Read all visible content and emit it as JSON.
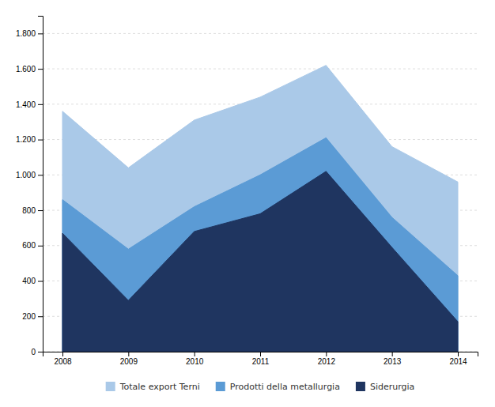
{
  "chart_data": {
    "type": "area",
    "x": [
      2008,
      2009,
      2010,
      2011,
      2012,
      2013,
      2014
    ],
    "series": [
      {
        "name": "Totale export Terni",
        "color": "#aac9e8",
        "values": [
          1360,
          1040,
          1310,
          1440,
          1620,
          1160,
          960
        ]
      },
      {
        "name": "Prodotti della metallurgia",
        "color": "#5b9bd5",
        "values": [
          860,
          580,
          820,
          1000,
          1210,
          760,
          430
        ]
      },
      {
        "name": "Siderurgia",
        "color": "#1f3560",
        "values": [
          670,
          290,
          680,
          780,
          1020,
          590,
          170
        ]
      }
    ],
    "stacked": false,
    "xlim": [
      2007.7,
      2014.3
    ],
    "xticks": [
      2008,
      2009,
      2010,
      2011,
      2012,
      2013,
      2014
    ],
    "ylim": [
      0,
      1900
    ],
    "yticks": [
      0,
      200,
      400,
      600,
      800,
      {
        "value": 1000,
        "label": "1.000"
      },
      {
        "value": 1200,
        "label": "1.200"
      },
      {
        "value": 1400,
        "label": "1.400"
      },
      {
        "value": 1600,
        "label": "1.600"
      },
      {
        "value": 1800,
        "label": "1.800"
      }
    ],
    "grid": true,
    "legend": "bottom"
  }
}
